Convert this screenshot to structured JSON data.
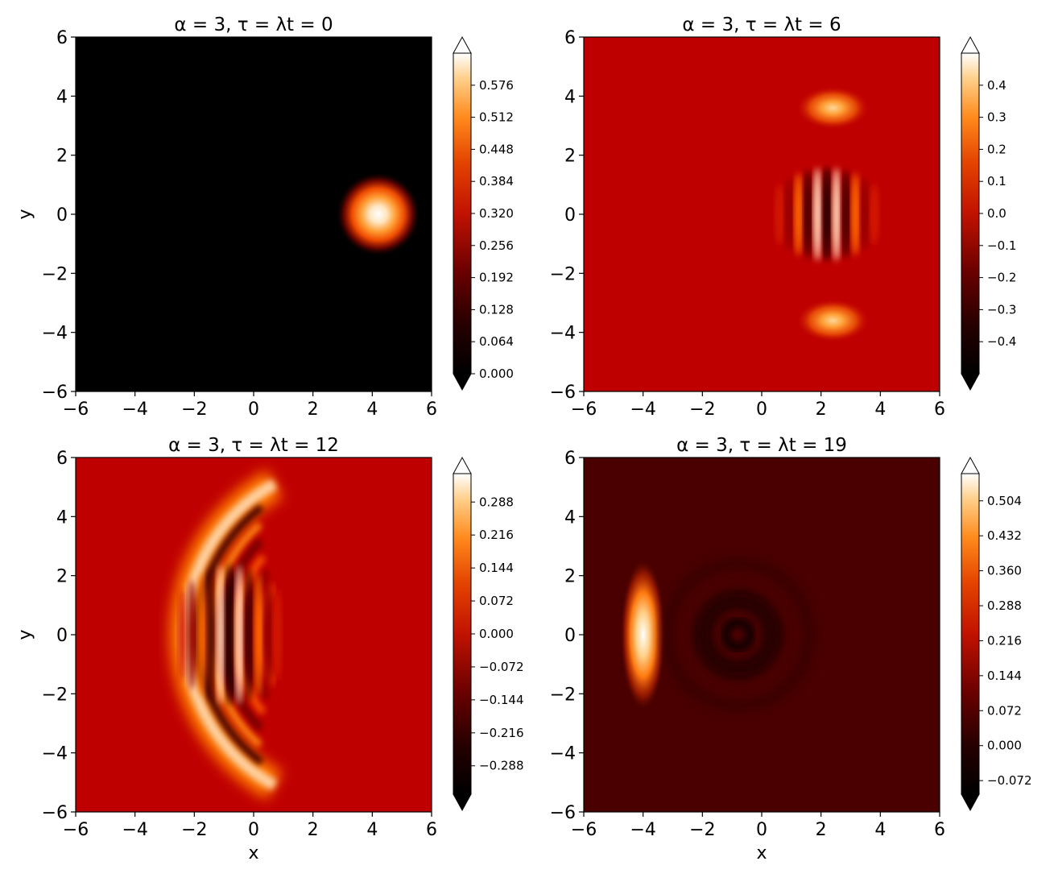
{
  "chart_data": [
    {
      "type": "heatmap",
      "title": "α = 3,  τ = λt = 0",
      "title_parts": {
        "prefix": "α = 3,  τ = λt = ",
        "value": "0"
      },
      "xlabel": "",
      "ylabel": "y",
      "xlim": [
        -6,
        6
      ],
      "ylim": [
        -6,
        6
      ],
      "xticks": [
        "−6",
        "−4",
        "−2",
        "0",
        "2",
        "4",
        "6"
      ],
      "yticks": [
        "−6",
        "−4",
        "−2",
        "0",
        "2",
        "4",
        "6"
      ],
      "colorbar": {
        "ticks": [
          "0.000",
          "0.064",
          "0.128",
          "0.192",
          "0.256",
          "0.320",
          "0.384",
          "0.448",
          "0.512",
          "0.576"
        ],
        "range": [
          0,
          0.64
        ],
        "extend": "both"
      },
      "colormap": "gist_heat",
      "features": [
        {
          "kind": "gaussian_blob",
          "x": 4.2,
          "y": 0,
          "sigma": 0.55,
          "peak": 0.6
        }
      ],
      "background": 0.0
    },
    {
      "type": "heatmap",
      "title": "α = 3,  τ = λt = 6",
      "title_parts": {
        "prefix": "α = 3,  τ = λt = ",
        "value": "6"
      },
      "xlabel": "",
      "ylabel": "",
      "xlim": [
        -6,
        6
      ],
      "ylim": [
        -6,
        6
      ],
      "xticks": [
        "−6",
        "−4",
        "−2",
        "0",
        "2",
        "4",
        "6"
      ],
      "yticks": [
        "−6",
        "−4",
        "−2",
        "0",
        "2",
        "4",
        "6"
      ],
      "colorbar": {
        "ticks": [
          "−0.4",
          "−0.3",
          "−0.2",
          "−0.1",
          "0.0",
          "0.1",
          "0.2",
          "0.3",
          "0.4"
        ],
        "range": [
          -0.5,
          0.5
        ],
        "extend": "both"
      },
      "colormap": "gist_heat",
      "features": [
        {
          "kind": "fringe_packet",
          "x": 2.2,
          "y": 0,
          "width": 1.6,
          "height": 1.6,
          "amplitude": 0.48
        },
        {
          "kind": "bright_lobe",
          "x": 2.4,
          "y": 3.6,
          "width": 1.6,
          "height": 0.55,
          "value": 0.33
        },
        {
          "kind": "bright_lobe",
          "x": 2.4,
          "y": -3.6,
          "width": 1.6,
          "height": 0.55,
          "value": 0.33
        }
      ],
      "background": 0.0
    },
    {
      "type": "heatmap",
      "title": "α = 3,  τ = λt = 12",
      "title_parts": {
        "prefix": "α = 3,  τ = λt = ",
        "value": "12"
      },
      "xlabel": "x",
      "ylabel": "y",
      "xlim": [
        -6,
        6
      ],
      "ylim": [
        -6,
        6
      ],
      "xticks": [
        "−6",
        "−4",
        "−2",
        "0",
        "2",
        "4",
        "6"
      ],
      "yticks": [
        "−6",
        "−4",
        "−2",
        "0",
        "2",
        "4",
        "6"
      ],
      "colorbar": {
        "ticks": [
          "−0.288",
          "−0.216",
          "−0.144",
          "−0.072",
          "0.000",
          "0.072",
          "0.144",
          "0.216",
          "0.288"
        ],
        "range": [
          -0.35,
          0.35
        ],
        "extend": "both"
      },
      "colormap": "gist_heat",
      "features": [
        {
          "kind": "arc_front",
          "cx": 3.5,
          "cy": 0,
          "radius": 5.8,
          "value": 0.3
        },
        {
          "kind": "fringe_packet",
          "x": -0.8,
          "y": 0,
          "width": 1.6,
          "height": 2.4,
          "amplitude": 0.33
        }
      ],
      "background": 0.0
    },
    {
      "type": "heatmap",
      "title": "α = 3,  τ = λt = 19",
      "title_parts": {
        "prefix": "α = 3,  τ = λt = ",
        "value": "19"
      },
      "xlabel": "x",
      "ylabel": "",
      "xlim": [
        -6,
        6
      ],
      "ylim": [
        -6,
        6
      ],
      "xticks": [
        "−6",
        "−4",
        "−2",
        "0",
        "2",
        "4",
        "6"
      ],
      "yticks": [
        "−6",
        "−4",
        "−2",
        "0",
        "2",
        "4",
        "6"
      ],
      "colorbar": {
        "ticks": [
          "−0.072",
          "0.000",
          "0.072",
          "0.144",
          "0.216",
          "0.288",
          "0.360",
          "0.432",
          "0.504"
        ],
        "range": [
          -0.1,
          0.56
        ],
        "extend": "both"
      },
      "colormap": "gist_heat",
      "features": [
        {
          "kind": "gaussian_blob",
          "x": -4.0,
          "y": 0,
          "sigma": 0.3,
          "sigma_y": 1.0,
          "peak": 0.54
        },
        {
          "kind": "dark_ring",
          "x": -0.8,
          "y": 0,
          "radius": 1.2,
          "value": -0.07
        }
      ],
      "background": 0.03
    }
  ]
}
